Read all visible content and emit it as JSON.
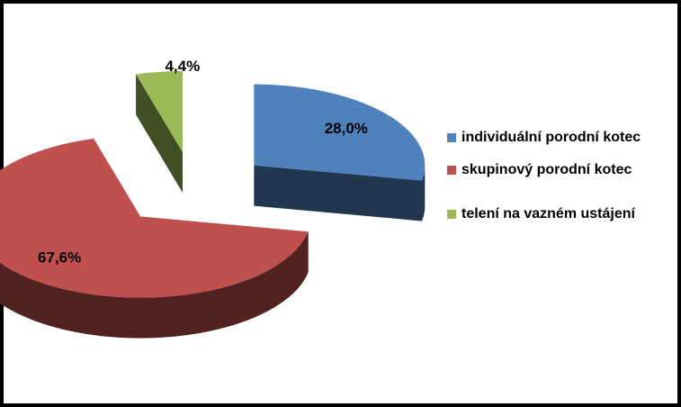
{
  "chart_data": {
    "type": "pie",
    "categories": [
      "individuální porodní kotec",
      "skupinový porodní kotec",
      "telení na vazném ustájení"
    ],
    "values": [
      28.0,
      67.6,
      4.4
    ],
    "value_labels": [
      "28,0%",
      "67,6%",
      "4,4%"
    ],
    "colors": [
      "#4f81bd",
      "#c0504d",
      "#9bbb59"
    ],
    "legend": "right",
    "exploded": true,
    "three_d": true
  }
}
